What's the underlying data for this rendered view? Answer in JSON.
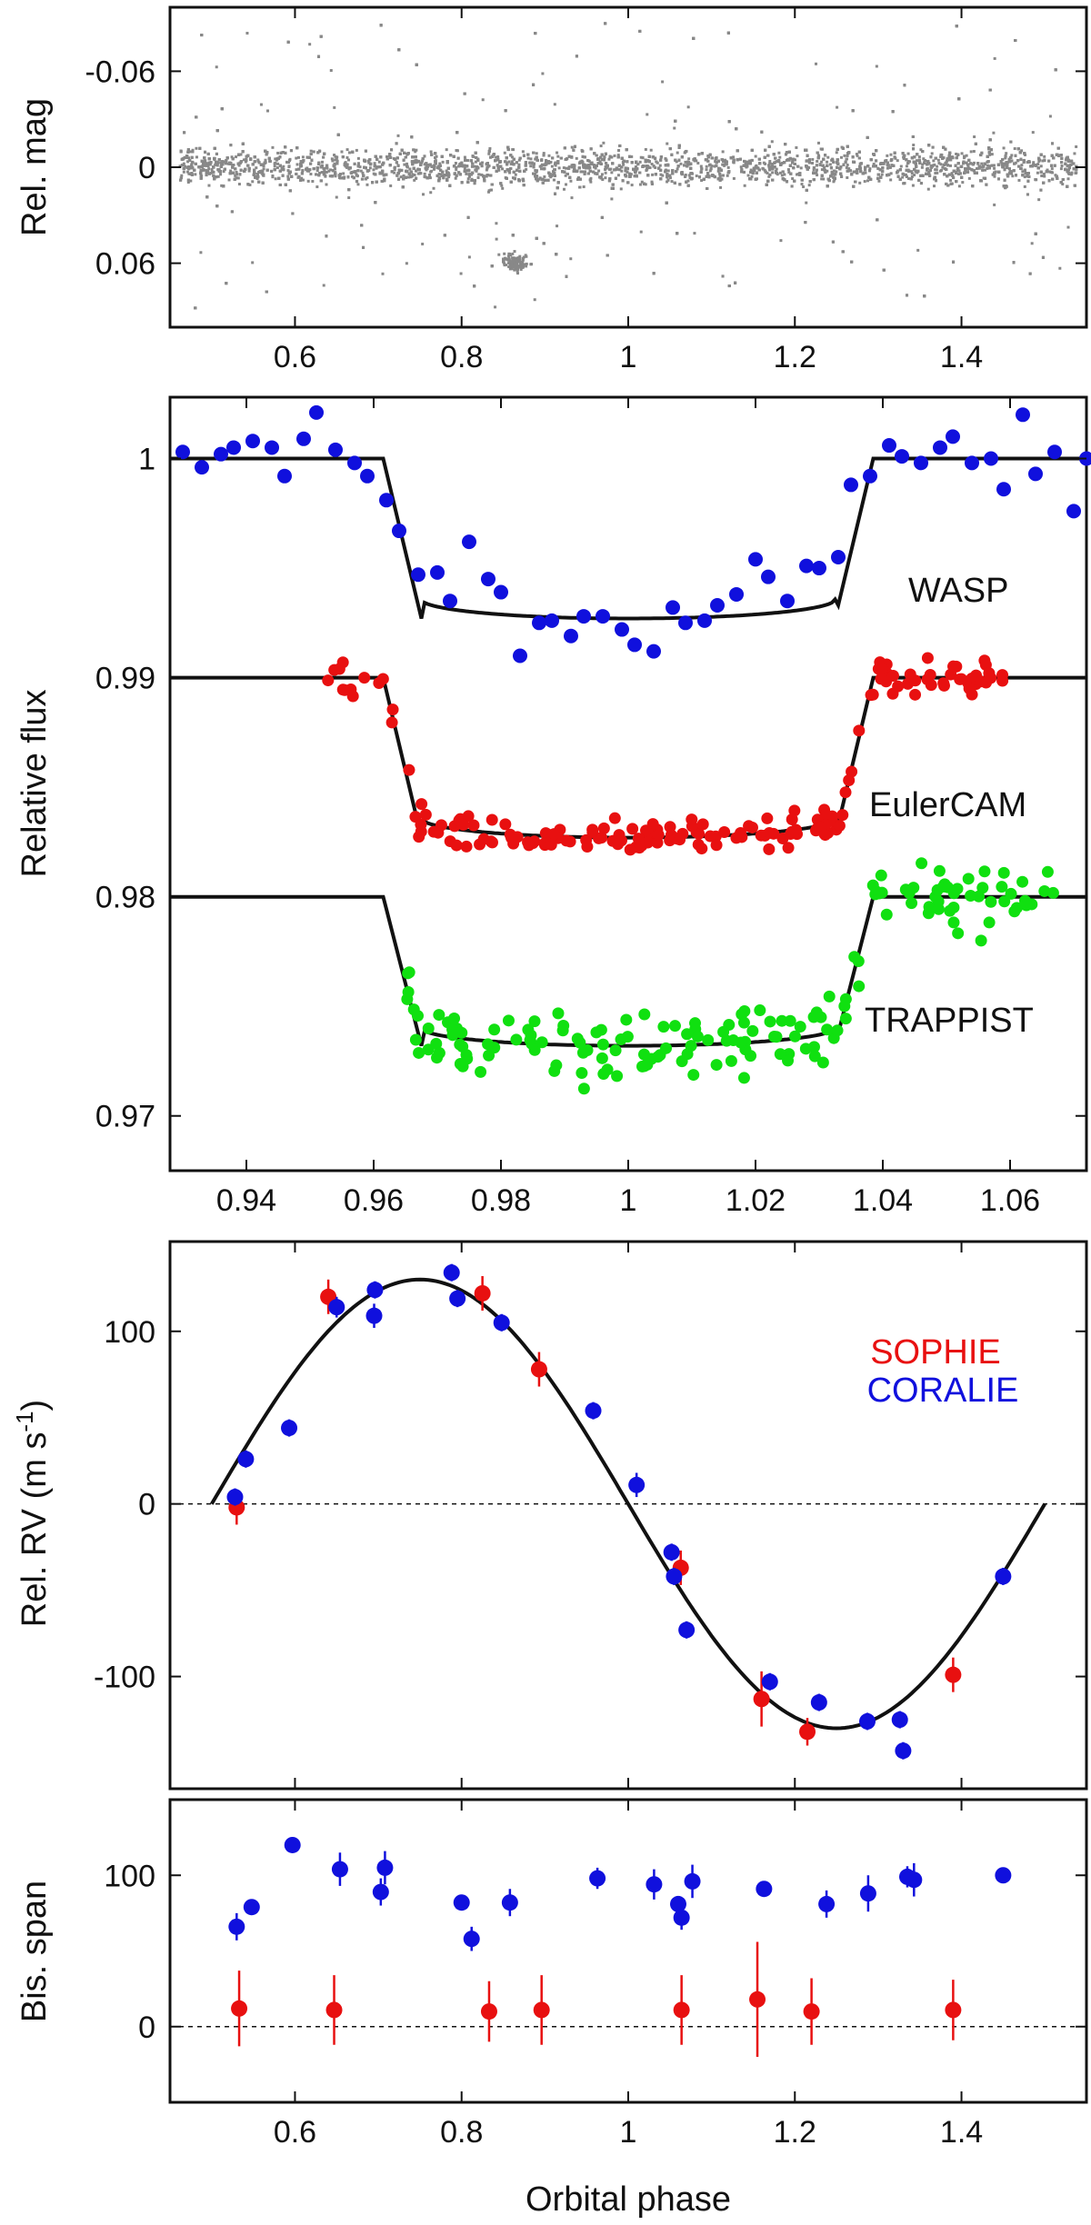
{
  "chart_data": [
    {
      "type": "scatter",
      "panel": "lightcurve-full",
      "ylabel": "Rel. mag",
      "xlabel": "",
      "xlim": [
        0.45,
        1.55
      ],
      "ylim": [
        0.1,
        -0.1
      ],
      "y_inverted": true,
      "xticks": [
        0.6,
        0.8,
        1,
        1.2,
        1.4
      ],
      "yticks": [
        -0.06,
        0,
        0.06
      ],
      "ytick_labels": [
        "-0.06",
        "0",
        "0.06"
      ],
      "point_color": "#888888",
      "description_note": "dense band of ~20000 photometric points centred on 0 with scatter to about ±0.09"
    },
    {
      "type": "scatter",
      "panel": "transits",
      "ylabel": "Relative flux",
      "xlabel": "",
      "xlim": [
        0.928,
        1.072
      ],
      "ylim": [
        0.9675,
        1.0028
      ],
      "xticks": [
        0.94,
        0.96,
        0.98,
        1,
        1.02,
        1.04,
        1.06
      ],
      "yticks": [
        0.97,
        0.98,
        0.99,
        1
      ],
      "ytick_labels": [
        "0.97",
        "0.98",
        "0.99",
        "1"
      ],
      "transit_model": {
        "t1": 0.9615,
        "t2": 0.9675,
        "t3": 1.0325,
        "t4": 1.0385
      },
      "series": [
        {
          "name": "WASP",
          "color": "#1010dd",
          "baseline": 1.0,
          "depth": 0.0073,
          "x_range": [
            0.93,
            1.07
          ],
          "points": [
            [
              0.93,
              1.0003
            ],
            [
              0.933,
              0.9996
            ],
            [
              0.936,
              1.0002
            ],
            [
              0.938,
              1.0005
            ],
            [
              0.941,
              1.0008
            ],
            [
              0.944,
              1.0005
            ],
            [
              0.946,
              0.9992
            ],
            [
              0.949,
              1.0009
            ],
            [
              0.951,
              1.0021
            ],
            [
              0.954,
              1.0004
            ],
            [
              0.957,
              0.9998
            ],
            [
              0.959,
              0.9992
            ],
            [
              0.962,
              0.9981
            ],
            [
              0.964,
              0.9967
            ],
            [
              0.967,
              0.9947
            ],
            [
              0.97,
              0.9948
            ],
            [
              0.972,
              0.9935
            ],
            [
              0.975,
              0.9962
            ],
            [
              0.978,
              0.9945
            ],
            [
              0.98,
              0.9939
            ],
            [
              0.983,
              0.991
            ],
            [
              0.986,
              0.9925
            ],
            [
              0.988,
              0.9926
            ],
            [
              0.991,
              0.9919
            ],
            [
              0.993,
              0.9928
            ],
            [
              0.996,
              0.9928
            ],
            [
              0.999,
              0.9922
            ],
            [
              1.001,
              0.9915
            ],
            [
              1.004,
              0.9912
            ],
            [
              1.007,
              0.9932
            ],
            [
              1.009,
              0.9925
            ],
            [
              1.012,
              0.9926
            ],
            [
              1.014,
              0.9933
            ],
            [
              1.017,
              0.9938
            ],
            [
              1.02,
              0.9954
            ],
            [
              1.022,
              0.9946
            ],
            [
              1.025,
              0.9935
            ],
            [
              1.028,
              0.9951
            ],
            [
              1.03,
              0.995
            ],
            [
              1.033,
              0.9955
            ],
            [
              1.035,
              0.9988
            ],
            [
              1.038,
              0.9992
            ],
            [
              1.041,
              1.0006
            ],
            [
              1.043,
              1.0001
            ],
            [
              1.046,
              0.9998
            ],
            [
              1.049,
              1.0005
            ],
            [
              1.051,
              1.001
            ],
            [
              1.054,
              0.9998
            ],
            [
              1.057,
              1.0
            ],
            [
              1.059,
              0.9986
            ],
            [
              1.062,
              1.002
            ],
            [
              1.064,
              0.9993
            ],
            [
              1.067,
              1.0003
            ],
            [
              1.07,
              0.9976
            ],
            [
              1.072,
              1.0
            ]
          ]
        },
        {
          "name": "EulerCAM",
          "color": "#e81010",
          "baseline": 0.99,
          "depth": 0.0073,
          "x_range": [
            0.952,
            1.061
          ]
        },
        {
          "name": "TRAPPIST",
          "color": "#10e010",
          "baseline": 0.98,
          "depth": 0.0068,
          "x_range": [
            0.964,
            1.067
          ]
        }
      ]
    },
    {
      "type": "scatter",
      "panel": "radial-velocity",
      "ylabel": "Rel. RV (m s",
      "ylabel_sup": "-1",
      "ylabel_close": ")",
      "xlabel": "",
      "xlim": [
        0.45,
        1.55
      ],
      "ylim": [
        -165,
        152
      ],
      "xticks": [
        0.6,
        0.8,
        1,
        1.2,
        1.4
      ],
      "yticks": [
        -100,
        0,
        100
      ],
      "ytick_labels": [
        "-100",
        "0",
        "100"
      ],
      "model": {
        "K": 130,
        "phase_range": [
          0.5,
          1.5
        ]
      },
      "series": [
        {
          "name": "SOPHIE",
          "color": "#e81010",
          "points": [
            [
              0.53,
              -2,
              10
            ],
            [
              0.64,
              120,
              10
            ],
            [
              0.825,
              122,
              10
            ],
            [
              0.893,
              78,
              10
            ],
            [
              1.063,
              -37,
              10
            ],
            [
              1.16,
              -113,
              16
            ],
            [
              1.215,
              -132,
              8
            ],
            [
              1.39,
              -99,
              10
            ]
          ]
        },
        {
          "name": "CORALIE",
          "color": "#1010dd",
          "points": [
            [
              0.528,
              4,
              5
            ],
            [
              0.541,
              26,
              5
            ],
            [
              0.593,
              44,
              5
            ],
            [
              0.65,
              114,
              6
            ],
            [
              0.695,
              109,
              7
            ],
            [
              0.696,
              124,
              5
            ],
            [
              0.788,
              134,
              5
            ],
            [
              0.795,
              119,
              5
            ],
            [
              0.848,
              105,
              5
            ],
            [
              0.958,
              54,
              5
            ],
            [
              1.01,
              11,
              7
            ],
            [
              1.052,
              -28,
              5
            ],
            [
              1.055,
              -42,
              5
            ],
            [
              1.07,
              -73,
              5
            ],
            [
              1.17,
              -103,
              5
            ],
            [
              1.229,
              -115,
              5
            ],
            [
              1.287,
              -126,
              5
            ],
            [
              1.326,
              -125,
              5
            ],
            [
              1.33,
              -143,
              5
            ],
            [
              1.45,
              -42,
              5
            ]
          ]
        }
      ]
    },
    {
      "type": "scatter",
      "panel": "bisector",
      "ylabel": "Bis. span",
      "xlabel": "Orbital phase",
      "xlim": [
        0.45,
        1.55
      ],
      "ylim": [
        -50,
        150
      ],
      "xticks": [
        0.6,
        0.8,
        1,
        1.2,
        1.4
      ],
      "yticks": [
        0,
        100
      ],
      "ytick_labels": [
        "0",
        "100"
      ],
      "series": [
        {
          "name": "SOPHIE",
          "color": "#e81010",
          "points": [
            [
              0.533,
              12,
              25
            ],
            [
              0.647,
              11,
              23
            ],
            [
              0.833,
              10,
              20
            ],
            [
              0.896,
              11,
              23
            ],
            [
              1.064,
              11,
              23
            ],
            [
              1.155,
              18,
              38
            ],
            [
              1.22,
              10,
              22
            ],
            [
              1.39,
              11,
              20
            ]
          ]
        },
        {
          "name": "CORALIE",
          "color": "#1010dd",
          "points": [
            [
              0.53,
              66,
              9
            ],
            [
              0.548,
              79,
              5
            ],
            [
              0.597,
              120,
              5
            ],
            [
              0.654,
              104,
              11
            ],
            [
              0.703,
              89,
              9
            ],
            [
              0.708,
              105,
              11
            ],
            [
              0.8,
              82,
              5
            ],
            [
              0.812,
              58,
              8
            ],
            [
              0.858,
              82,
              9
            ],
            [
              0.963,
              98,
              7
            ],
            [
              1.031,
              94,
              10
            ],
            [
              1.06,
              81,
              5
            ],
            [
              1.064,
              72,
              8
            ],
            [
              1.077,
              96,
              11
            ],
            [
              1.163,
              91,
              5
            ],
            [
              1.238,
              81,
              9
            ],
            [
              1.288,
              88,
              12
            ],
            [
              1.335,
              99,
              7
            ],
            [
              1.343,
              97,
              11
            ],
            [
              1.45,
              100,
              5
            ]
          ]
        }
      ]
    }
  ]
}
